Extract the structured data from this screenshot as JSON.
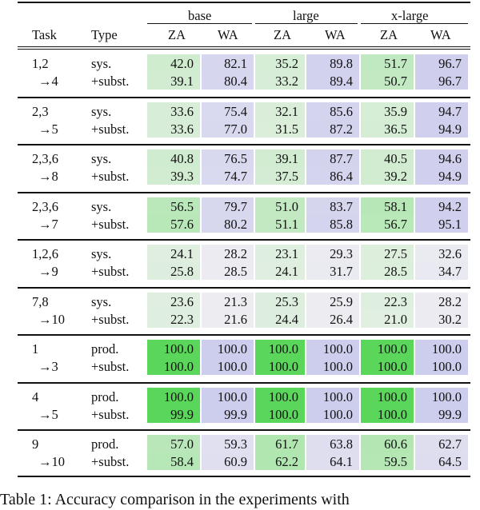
{
  "header": {
    "task": "Task",
    "type": "Type",
    "groups": [
      "base",
      "large",
      "x-large"
    ],
    "metrics": [
      "ZA",
      "WA"
    ]
  },
  "rows": [
    {
      "task": [
        "1,2",
        "→4"
      ],
      "types": [
        "sys.",
        "+subst."
      ],
      "values": [
        [
          "42.0",
          "82.1",
          "35.2",
          "89.8",
          "51.7",
          "96.7"
        ],
        [
          "39.1",
          "80.4",
          "33.2",
          "89.4",
          "50.7",
          "96.7"
        ]
      ]
    },
    {
      "task": [
        "2,3",
        "→5"
      ],
      "types": [
        "sys.",
        "+subst."
      ],
      "values": [
        [
          "33.6",
          "75.4",
          "32.1",
          "85.6",
          "35.9",
          "94.7"
        ],
        [
          "33.6",
          "77.0",
          "31.5",
          "87.2",
          "36.5",
          "94.9"
        ]
      ]
    },
    {
      "task": [
        "2,3,6",
        "→8"
      ],
      "types": [
        "sys.",
        "+subst."
      ],
      "values": [
        [
          "40.8",
          "76.5",
          "39.1",
          "87.7",
          "40.5",
          "94.6"
        ],
        [
          "39.3",
          "74.7",
          "37.5",
          "86.4",
          "39.2",
          "94.9"
        ]
      ]
    },
    {
      "task": [
        "2,3,6",
        "→7"
      ],
      "types": [
        "sys.",
        "+subst."
      ],
      "values": [
        [
          "56.5",
          "79.7",
          "51.0",
          "83.7",
          "58.1",
          "94.2"
        ],
        [
          "57.6",
          "80.2",
          "51.1",
          "85.8",
          "56.7",
          "95.1"
        ]
      ]
    },
    {
      "task": [
        "1,2,6",
        "→9"
      ],
      "types": [
        "sys.",
        "+subst."
      ],
      "values": [
        [
          "24.1",
          "28.2",
          "23.1",
          "29.3",
          "27.5",
          "32.6"
        ],
        [
          "25.8",
          "28.5",
          "24.1",
          "31.7",
          "28.5",
          "34.7"
        ]
      ]
    },
    {
      "task": [
        "7,8",
        "→10"
      ],
      "types": [
        "sys.",
        "+subst."
      ],
      "values": [
        [
          "23.6",
          "21.3",
          "25.3",
          "25.9",
          "22.3",
          "28.2"
        ],
        [
          "22.3",
          "21.6",
          "24.4",
          "26.4",
          "21.0",
          "30.2"
        ]
      ]
    },
    {
      "task": [
        "1",
        "→3"
      ],
      "types": [
        "prod.",
        "+subst."
      ],
      "values": [
        [
          "100.0",
          "100.0",
          "100.0",
          "100.0",
          "100.0",
          "100.0"
        ],
        [
          "100.0",
          "100.0",
          "100.0",
          "100.0",
          "100.0",
          "100.0"
        ]
      ]
    },
    {
      "task": [
        "4",
        "→5"
      ],
      "types": [
        "prod.",
        "+subst."
      ],
      "values": [
        [
          "100.0",
          "100.0",
          "100.0",
          "100.0",
          "100.0",
          "100.0"
        ],
        [
          "99.9",
          "99.9",
          "100.0",
          "100.0",
          "100.0",
          "99.9"
        ]
      ]
    },
    {
      "task": [
        "9",
        "→10"
      ],
      "types": [
        "prod.",
        "+subst."
      ],
      "values": [
        [
          "57.0",
          "59.3",
          "61.7",
          "63.8",
          "60.6",
          "62.7"
        ],
        [
          "58.4",
          "60.9",
          "62.2",
          "64.1",
          "59.5",
          "64.5"
        ]
      ]
    }
  ],
  "caption": "Table 1:  Accuracy comparison in the experiments with",
  "colors": {
    "za_hue": "#5ad65a",
    "wa_hue": "#9696e6",
    "base_gray": "#f2f2f2",
    "rule": "#111111"
  }
}
